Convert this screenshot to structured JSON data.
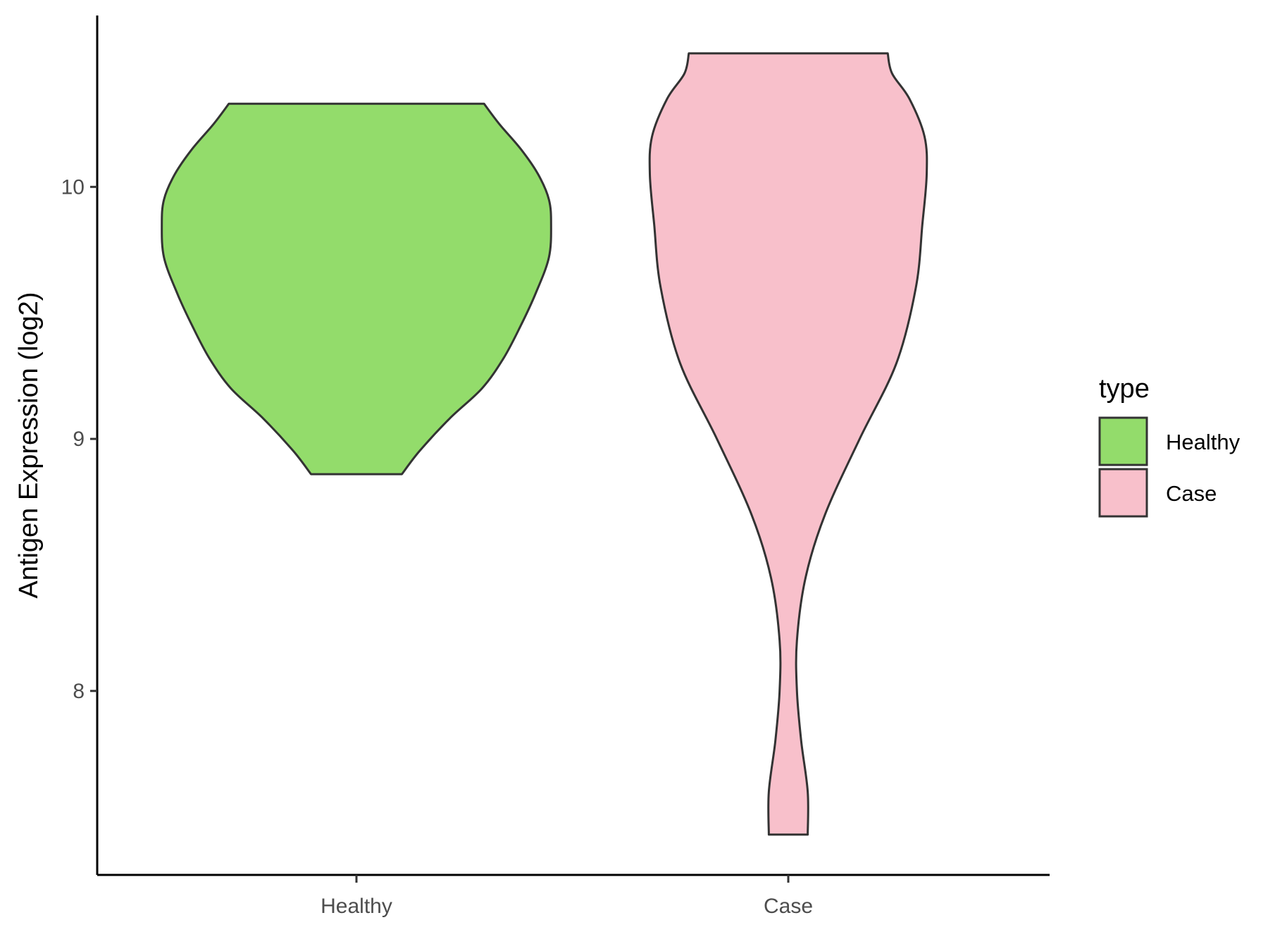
{
  "chart_data": {
    "type": "violin",
    "ylabel": "Antigen Expression (log2)",
    "xlabel": "",
    "categories": [
      "Healthy",
      "Case"
    ],
    "y_ticks": [
      "8",
      "9",
      "10"
    ],
    "ylim": [
      7.27,
      10.68
    ],
    "legend": {
      "title": "type",
      "placement": "right",
      "entries": [
        "Healthy",
        "Case"
      ]
    },
    "grid": false,
    "series": [
      {
        "name": "Healthy",
        "color": "#93DC6B",
        "min": 8.86,
        "max": 10.33,
        "density_profile": [
          [
            8.86,
            0.21
          ],
          [
            8.95,
            0.29
          ],
          [
            9.08,
            0.43
          ],
          [
            9.2,
            0.58
          ],
          [
            9.32,
            0.68
          ],
          [
            9.45,
            0.76
          ],
          [
            9.58,
            0.83
          ],
          [
            9.72,
            0.89
          ],
          [
            9.85,
            0.9
          ],
          [
            9.95,
            0.89
          ],
          [
            10.05,
            0.84
          ],
          [
            10.15,
            0.76
          ],
          [
            10.25,
            0.66
          ],
          [
            10.33,
            0.59
          ]
        ]
      },
      {
        "name": "Case",
        "color": "#F8C0CB",
        "min": 7.43,
        "max": 10.53,
        "density_profile": [
          [
            7.43,
            0.09
          ],
          [
            7.6,
            0.09
          ],
          [
            7.8,
            0.06
          ],
          [
            8.0,
            0.04
          ],
          [
            8.2,
            0.04
          ],
          [
            8.45,
            0.08
          ],
          [
            8.7,
            0.17
          ],
          [
            9.0,
            0.33
          ],
          [
            9.3,
            0.5
          ],
          [
            9.6,
            0.59
          ],
          [
            9.85,
            0.62
          ],
          [
            10.05,
            0.64
          ],
          [
            10.2,
            0.63
          ],
          [
            10.35,
            0.56
          ],
          [
            10.45,
            0.48
          ],
          [
            10.53,
            0.46
          ]
        ]
      }
    ]
  }
}
